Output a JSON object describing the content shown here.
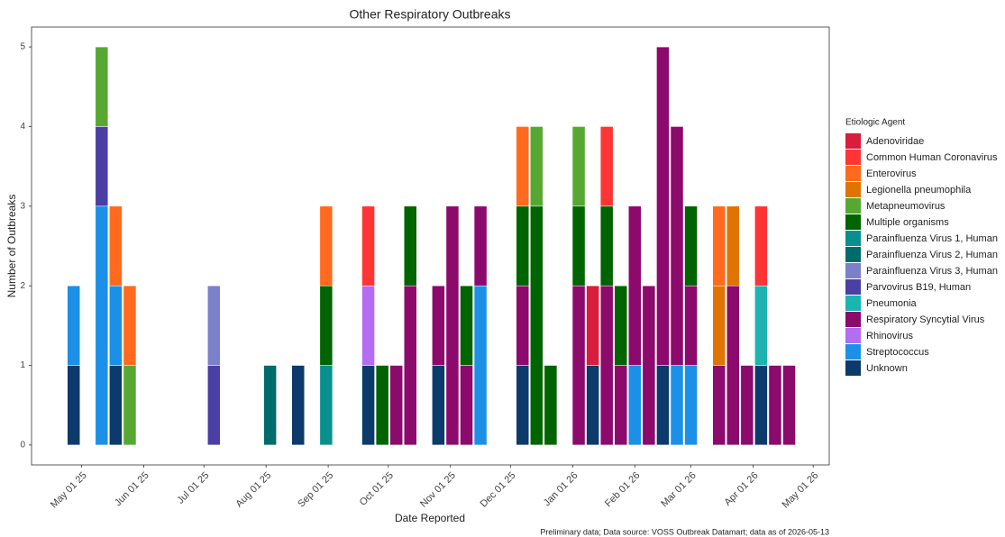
{
  "chart_data": {
    "type": "bar",
    "stacked": true,
    "title": "Other Respiratory Outbreaks",
    "x_label": "Date Reported",
    "y_label": "Number of Outbreaks",
    "legend_title": "Etiologic Agent",
    "caption": "Preliminary data; Data source: VOSS Outbreak Datamart; data as of 2026-05-13",
    "legend_position": "right",
    "x": [
      "2025-04-27",
      "2025-05-11",
      "2025-05-18",
      "2025-05-25",
      "2025-07-06",
      "2025-08-03",
      "2025-08-17",
      "2025-08-31",
      "2025-09-21",
      "2025-09-28",
      "2025-10-05",
      "2025-10-12",
      "2025-10-26",
      "2025-11-02",
      "2025-11-09",
      "2025-11-16",
      "2025-12-07",
      "2025-12-14",
      "2025-12-21",
      "2026-01-04",
      "2026-01-11",
      "2026-01-18",
      "2026-01-25",
      "2026-02-01",
      "2026-02-08",
      "2026-02-15",
      "2026-02-22",
      "2026-03-01",
      "2026-03-15",
      "2026-03-22",
      "2026-03-29",
      "2026-04-05",
      "2026-04-12",
      "2026-04-19"
    ],
    "xlim": [
      "2025-04-06",
      "2026-05-09"
    ],
    "xticks": [
      {
        "value": "2025-05-01",
        "label": "May 01 25"
      },
      {
        "value": "2025-06-01",
        "label": "Jun 01 25"
      },
      {
        "value": "2025-07-01",
        "label": "Jul 01 25"
      },
      {
        "value": "2025-08-01",
        "label": "Aug 01 25"
      },
      {
        "value": "2025-09-01",
        "label": "Sep 01 25"
      },
      {
        "value": "2025-10-01",
        "label": "Oct 01 25"
      },
      {
        "value": "2025-11-01",
        "label": "Nov 01 25"
      },
      {
        "value": "2025-12-01",
        "label": "Dec 01 25"
      },
      {
        "value": "2026-01-01",
        "label": "Jan 01 26"
      },
      {
        "value": "2026-02-01",
        "label": "Feb 01 26"
      },
      {
        "value": "2026-03-01",
        "label": "Mar 01 26"
      },
      {
        "value": "2026-04-01",
        "label": "Apr 01 26"
      },
      {
        "value": "2026-05-01",
        "label": "May 01 26"
      }
    ],
    "ylim": [
      -0.25,
      5.25
    ],
    "yticks": [
      0,
      1,
      2,
      3,
      4,
      5
    ],
    "series": [
      {
        "name": "Adenoviridae",
        "color": "#d81e3c",
        "values": [
          null,
          null,
          null,
          null,
          null,
          null,
          null,
          null,
          null,
          null,
          null,
          null,
          null,
          null,
          null,
          null,
          null,
          null,
          null,
          null,
          1,
          null,
          null,
          null,
          null,
          null,
          null,
          null,
          null,
          null,
          null,
          null,
          null,
          null
        ]
      },
      {
        "name": "Common Human Coronavirus",
        "color": "#ff3535",
        "values": [
          null,
          null,
          null,
          null,
          null,
          null,
          null,
          null,
          1,
          null,
          null,
          null,
          null,
          null,
          null,
          null,
          null,
          null,
          null,
          null,
          null,
          1,
          null,
          null,
          null,
          null,
          null,
          null,
          null,
          null,
          null,
          1,
          null,
          null
        ]
      },
      {
        "name": "Enterovirus",
        "color": "#ff6a1f",
        "values": [
          null,
          null,
          1,
          1,
          null,
          null,
          null,
          1,
          null,
          null,
          null,
          null,
          null,
          null,
          null,
          null,
          1,
          null,
          null,
          null,
          null,
          null,
          null,
          null,
          null,
          null,
          null,
          null,
          1,
          null,
          null,
          null,
          null,
          null
        ]
      },
      {
        "name": "Legionella pneumophila",
        "color": "#e07400",
        "values": [
          null,
          null,
          null,
          null,
          null,
          null,
          null,
          null,
          null,
          null,
          null,
          null,
          null,
          null,
          null,
          null,
          null,
          null,
          null,
          null,
          null,
          null,
          null,
          null,
          null,
          null,
          null,
          null,
          1,
          1,
          null,
          null,
          null,
          null
        ]
      },
      {
        "name": "Metapneumovirus",
        "color": "#57a832",
        "values": [
          null,
          1,
          null,
          1,
          null,
          null,
          null,
          null,
          null,
          null,
          null,
          null,
          null,
          null,
          null,
          null,
          null,
          1,
          null,
          1,
          null,
          null,
          null,
          null,
          null,
          null,
          null,
          null,
          null,
          null,
          null,
          null,
          null,
          null
        ]
      },
      {
        "name": "Multiple organisms",
        "color": "#006400",
        "values": [
          null,
          null,
          null,
          null,
          null,
          null,
          null,
          1,
          null,
          1,
          null,
          1,
          null,
          null,
          1,
          null,
          1,
          3,
          1,
          1,
          null,
          1,
          1,
          null,
          null,
          null,
          null,
          1,
          null,
          null,
          null,
          null,
          null,
          null
        ]
      },
      {
        "name": "Parainfluenza Virus 1, Human",
        "color": "#0a8f8f",
        "values": [
          null,
          null,
          null,
          null,
          null,
          null,
          null,
          1,
          null,
          null,
          null,
          null,
          null,
          null,
          null,
          null,
          null,
          null,
          null,
          null,
          null,
          null,
          null,
          null,
          null,
          null,
          null,
          null,
          null,
          null,
          null,
          null,
          null,
          null
        ]
      },
      {
        "name": "Parainfluenza Virus 2, Human",
        "color": "#006b6b",
        "values": [
          null,
          null,
          null,
          null,
          null,
          1,
          null,
          null,
          null,
          null,
          null,
          null,
          null,
          null,
          null,
          null,
          null,
          null,
          null,
          null,
          null,
          null,
          null,
          null,
          null,
          null,
          null,
          null,
          null,
          null,
          null,
          null,
          null,
          null
        ]
      },
      {
        "name": "Parainfluenza Virus 3, Human",
        "color": "#7b80c8",
        "values": [
          null,
          null,
          null,
          null,
          1,
          null,
          null,
          null,
          null,
          null,
          null,
          null,
          null,
          null,
          null,
          null,
          null,
          null,
          null,
          null,
          null,
          null,
          null,
          null,
          null,
          null,
          null,
          null,
          null,
          null,
          null,
          null,
          null,
          null
        ]
      },
      {
        "name": "Parvovirus B19, Human",
        "color": "#4b3fa3",
        "values": [
          null,
          1,
          null,
          null,
          1,
          null,
          null,
          null,
          null,
          null,
          null,
          null,
          null,
          null,
          null,
          null,
          null,
          null,
          null,
          null,
          null,
          null,
          null,
          null,
          null,
          null,
          null,
          null,
          null,
          null,
          null,
          null,
          null,
          null
        ]
      },
      {
        "name": "Pneumonia",
        "color": "#1cb4b0",
        "values": [
          null,
          null,
          null,
          null,
          null,
          null,
          null,
          null,
          null,
          null,
          null,
          null,
          null,
          null,
          null,
          null,
          null,
          null,
          null,
          null,
          null,
          null,
          null,
          null,
          null,
          null,
          null,
          null,
          null,
          null,
          null,
          1,
          null,
          null
        ]
      },
      {
        "name": "Respiratory Syncytial Virus",
        "color": "#8b0a6b",
        "values": [
          null,
          null,
          null,
          null,
          null,
          null,
          null,
          null,
          null,
          null,
          1,
          2,
          1,
          3,
          1,
          1,
          1,
          null,
          null,
          2,
          null,
          2,
          1,
          2,
          2,
          4,
          3,
          1,
          1,
          2,
          1,
          null,
          1,
          1
        ]
      },
      {
        "name": "Rhinovirus",
        "color": "#b46cf2",
        "values": [
          null,
          null,
          null,
          null,
          null,
          null,
          null,
          null,
          1,
          null,
          null,
          null,
          null,
          null,
          null,
          null,
          null,
          null,
          null,
          null,
          null,
          null,
          null,
          null,
          null,
          null,
          null,
          null,
          null,
          null,
          null,
          null,
          null,
          null
        ]
      },
      {
        "name": "Streptococcus",
        "color": "#1c90e6",
        "values": [
          1,
          3,
          1,
          null,
          null,
          null,
          null,
          null,
          null,
          null,
          null,
          null,
          null,
          null,
          null,
          2,
          null,
          null,
          null,
          null,
          null,
          null,
          null,
          1,
          null,
          null,
          1,
          1,
          null,
          null,
          null,
          null,
          null,
          null
        ]
      },
      {
        "name": "Unknown",
        "color": "#0b3a6b",
        "values": [
          1,
          null,
          1,
          null,
          null,
          null,
          1,
          null,
          1,
          null,
          null,
          null,
          1,
          null,
          null,
          null,
          1,
          null,
          null,
          null,
          1,
          null,
          null,
          null,
          null,
          1,
          null,
          null,
          null,
          null,
          null,
          1,
          null,
          null
        ]
      }
    ]
  }
}
